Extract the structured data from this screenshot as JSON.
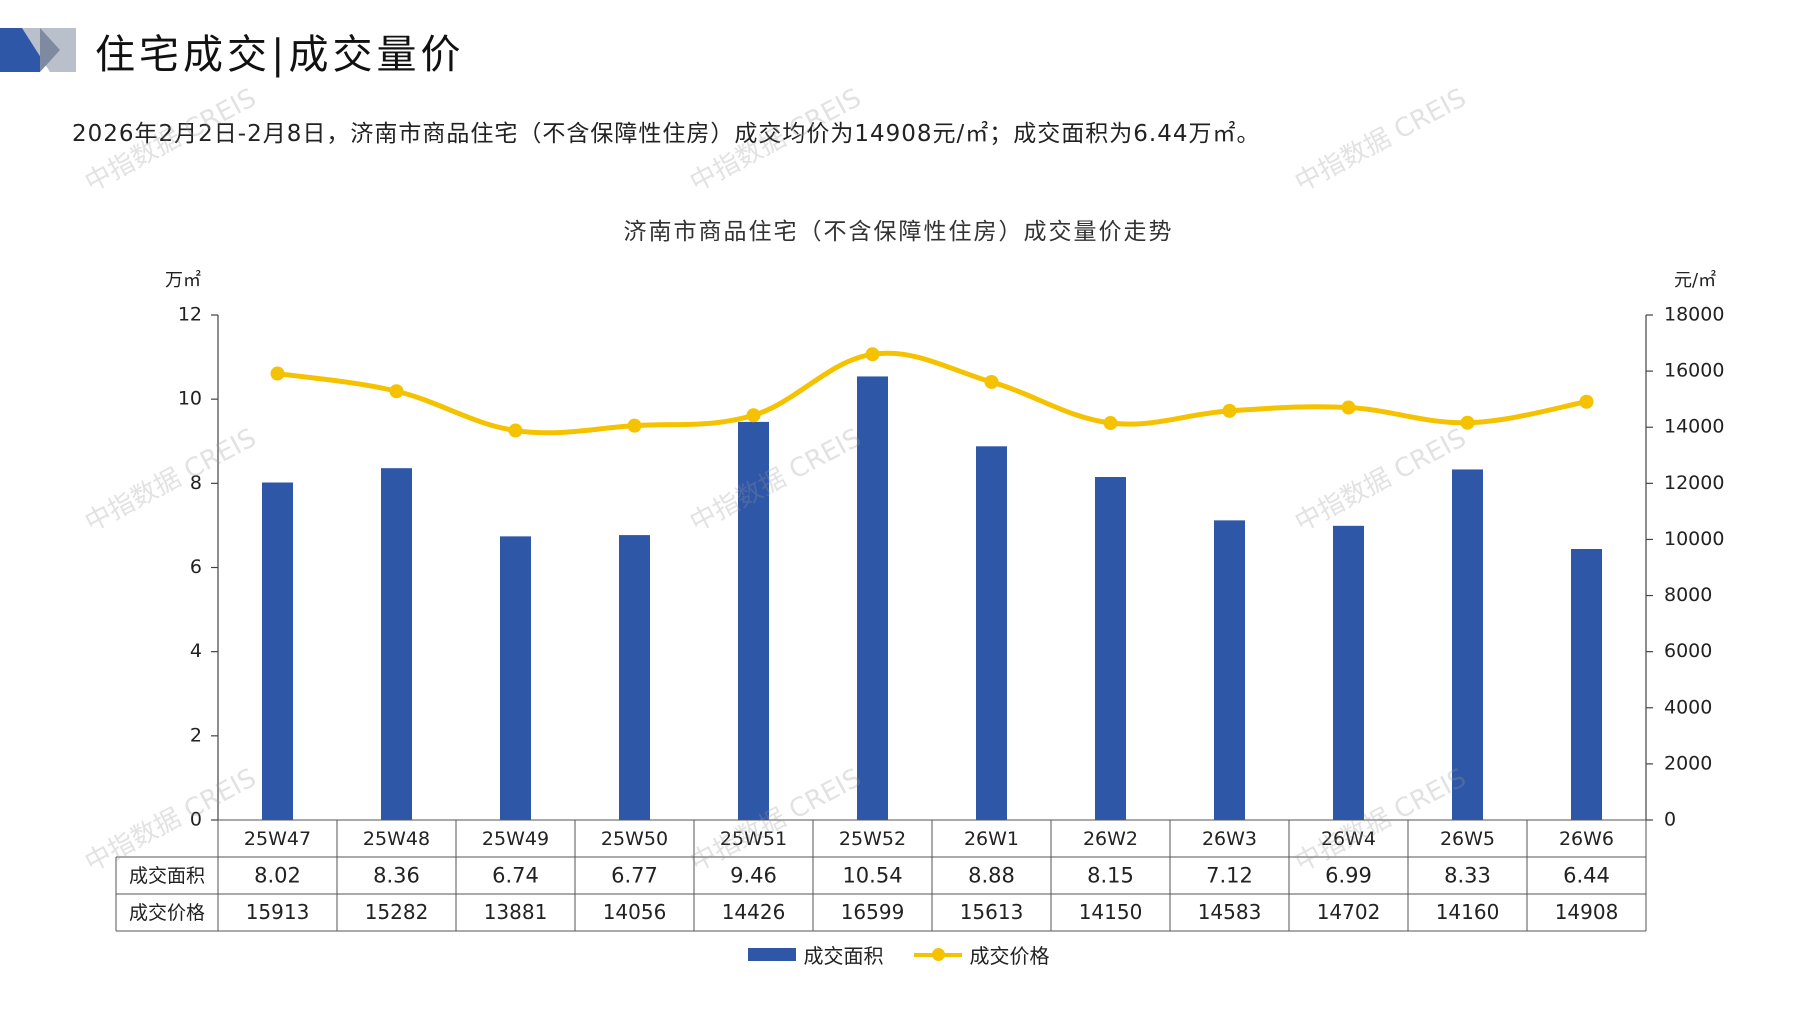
{
  "header": {
    "title": "住宅成交|成交量价",
    "summary": "2026年2月2日-2月8日，济南市商品住宅（不含保障性住房）成交均价为14908元/㎡；成交面积为6.44万㎡。"
  },
  "watermark": "中指数据 CREIS",
  "colors": {
    "bar": "#2f57a8",
    "line": "#f5c200",
    "logo_dark": "#2f57a8",
    "logo_light": "#9aa3b5"
  },
  "chart_data": {
    "type": "bar",
    "title": "济南市商品住宅（不含保障性住房）成交量价走势",
    "left_unit": "万㎡",
    "right_unit": "元/㎡",
    "categories": [
      "25W47",
      "25W48",
      "25W49",
      "25W50",
      "25W51",
      "25W52",
      "26W1",
      "26W2",
      "26W3",
      "26W4",
      "26W5",
      "26W6"
    ],
    "y_left": {
      "min": 0,
      "max": 12,
      "ticks": [
        "0",
        "2",
        "4",
        "6",
        "8",
        "10",
        "12"
      ]
    },
    "y_right": {
      "min": 0,
      "max": 18000,
      "ticks": [
        "0",
        "2000",
        "4000",
        "6000",
        "8000",
        "10000",
        "12000",
        "14000",
        "16000",
        "18000"
      ]
    },
    "series": [
      {
        "name": "成交面积",
        "type": "bar",
        "axis": "left",
        "values": [
          8.02,
          8.36,
          6.74,
          6.77,
          9.46,
          10.54,
          8.88,
          8.15,
          7.12,
          6.99,
          8.33,
          6.44
        ],
        "labels": [
          "8.02",
          "8.36",
          "6.74",
          "6.77",
          "9.46",
          "10.54",
          "8.88",
          "8.15",
          "7.12",
          "6.99",
          "8.33",
          "6.44"
        ]
      },
      {
        "name": "成交价格",
        "type": "line",
        "axis": "right",
        "values": [
          15913,
          15282,
          13881,
          14056,
          14426,
          16599,
          15613,
          14150,
          14583,
          14702,
          14160,
          14908
        ],
        "labels": [
          "15913",
          "15282",
          "13881",
          "14056",
          "14426",
          "16599",
          "15613",
          "14150",
          "14583",
          "14702",
          "14160",
          "14908"
        ]
      }
    ],
    "legend": "bottom",
    "grid": false
  }
}
